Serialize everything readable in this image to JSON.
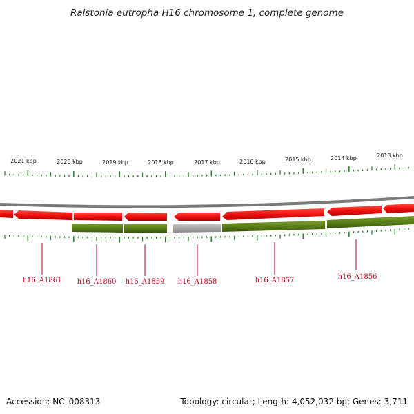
{
  "title": "Ralstonia eutropha H16 chromosome 1, complete genome",
  "footer": {
    "accession": "Accession: NC_008313",
    "summary": "Topology: circular; Length: 4,052,032 bp; Genes: 3,711"
  },
  "kbp_labels": [
    "2021 kbp",
    "2020 kbp",
    "2019 kbp",
    "2018 kbp",
    "2017 kbp",
    "2016 kbp",
    "2015 kbp",
    "2014 kbp",
    "2013 kbp"
  ],
  "gene_labels": [
    "h16_A1861",
    "h16_A1860",
    "h16_A1859",
    "h16_A1858",
    "h16_A1857",
    "h16_A1856"
  ],
  "colors": {
    "gene_red": "#f01010",
    "cds_green": "#5a7f1a",
    "pseudo_gray": "#a8a8a8",
    "backbone": "#7a7a7a",
    "tick_green": "#2a8a2a",
    "label_red": "#c0001a"
  }
}
